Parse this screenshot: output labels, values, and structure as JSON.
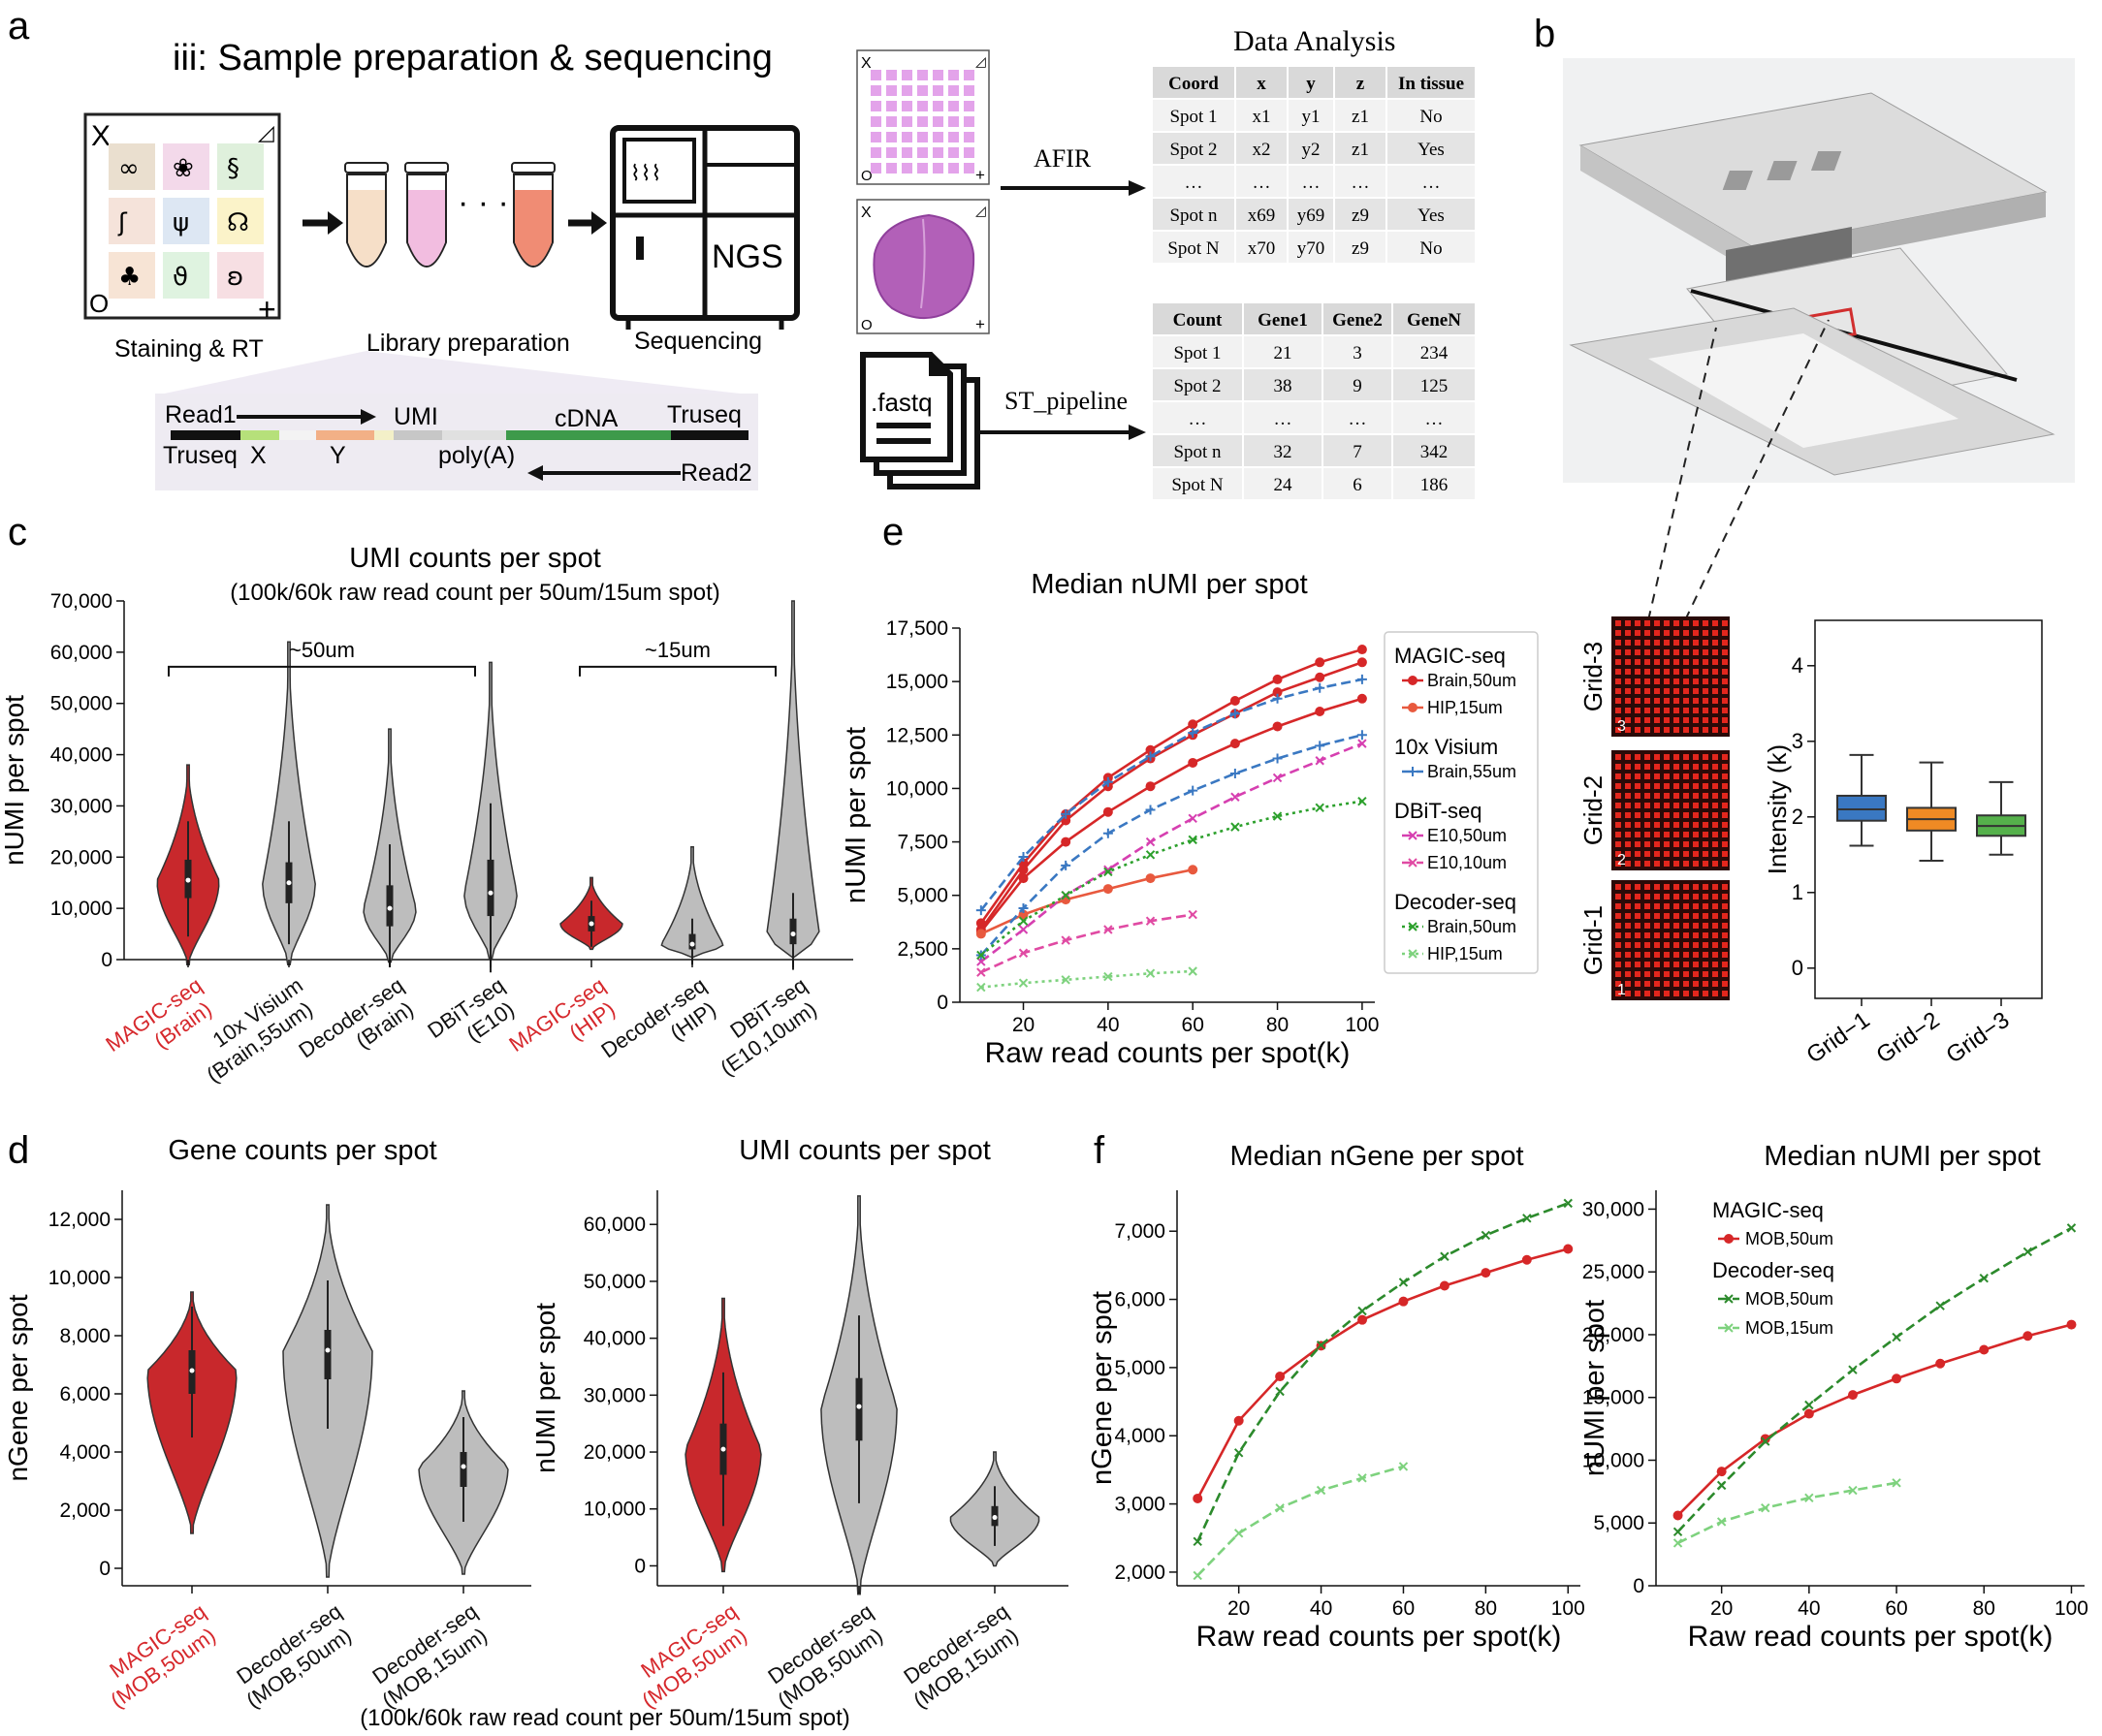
{
  "panels": {
    "a": "a",
    "b": "b",
    "c": "c",
    "d": "d",
    "e": "e",
    "f": "f"
  },
  "a": {
    "title": "iii: Sample preparation & sequencing",
    "staining_label": "Staining & RT",
    "library_label": "Library preparation",
    "sequencing_label": "Sequencing",
    "ngs": "NGS",
    "dots": "· · ·",
    "slide_marks": [
      "X",
      "◿",
      "O",
      "+"
    ],
    "construct": {
      "read1": "Read1",
      "umi": "UMI",
      "cdna": "cDNA",
      "truseq_right": "Truseq",
      "truseq_left": "Truseq",
      "x": "X",
      "y": "Y",
      "polya": "poly(A)",
      "read2": "Read2"
    },
    "afir": "AFIR",
    "st_pipeline": "ST_pipeline",
    "fastq": ".fastq",
    "data_analysis": "Data Analysis",
    "coord_table": {
      "headers": [
        "Coord",
        "x",
        "y",
        "z",
        "In tissue"
      ],
      "rows": [
        [
          "Spot 1",
          "x1",
          "y1",
          "z1",
          "No"
        ],
        [
          "Spot 2",
          "x2",
          "y2",
          "z1",
          "Yes"
        ],
        [
          "…",
          "…",
          "…",
          "…",
          "…"
        ],
        [
          "Spot n",
          "x69",
          "y69",
          "z9",
          "Yes"
        ],
        [
          "Spot N",
          "x70",
          "y70",
          "z9",
          "No"
        ]
      ]
    },
    "count_table": {
      "headers": [
        "Count",
        "Gene1",
        "Gene2",
        "GeneN"
      ],
      "rows": [
        [
          "Spot 1",
          "21",
          "3",
          "234"
        ],
        [
          "Spot 2",
          "38",
          "9",
          "125"
        ],
        [
          "…",
          "…",
          "…",
          "…"
        ],
        [
          "Spot n",
          "32",
          "7",
          "342"
        ],
        [
          "Spot  N",
          "24",
          "6",
          "186"
        ]
      ]
    }
  },
  "b": {
    "grid_labels": [
      "Grid-3",
      "Grid-2",
      "Grid-1"
    ],
    "grid_numbers": [
      "3",
      "2",
      "1"
    ]
  },
  "chart_data": [
    {
      "id": "c",
      "type": "violin",
      "title": "UMI counts per spot",
      "subtitle": "(100k/60k raw read count per 50um/15um spot)",
      "ylabel": "nUMI per spot",
      "ylim": [
        0,
        70000
      ],
      "yticks": [
        "0",
        "10,000",
        "20,000",
        "30,000",
        "40,000",
        "50,000",
        "60,000",
        "70,000"
      ],
      "brackets": [
        "~50um",
        "~15um"
      ],
      "groups": [
        {
          "label": "MAGIC-seq\n(Brain)",
          "color": "#c8282c",
          "min": -1000,
          "max": 38000,
          "median": 15500,
          "q1": 12000,
          "q3": 19500,
          "hl": "red"
        },
        {
          "label": "10x Visium\n(Brain,55um)",
          "color": "#bdbdbd",
          "min": -1000,
          "max": 62000,
          "median": 15000,
          "q1": 11000,
          "q3": 19000
        },
        {
          "label": "Decoder-seq\n(Brain)",
          "color": "#bdbdbd",
          "min": -500,
          "max": 45000,
          "median": 10000,
          "q1": 6500,
          "q3": 14500
        },
        {
          "label": "DBiT-seq\n(E10)",
          "color": "#bdbdbd",
          "min": 0,
          "max": 58000,
          "median": 13000,
          "q1": 8500,
          "q3": 19500
        },
        {
          "label": "MAGIC-seq\n(HIP)",
          "color": "#c8282c",
          "min": 2000,
          "max": 16000,
          "median": 7000,
          "q1": 5500,
          "q3": 8500,
          "hl": "red"
        },
        {
          "label": "Decoder-seq\n(HIP)",
          "color": "#bdbdbd",
          "min": 500,
          "max": 22000,
          "median": 3000,
          "q1": 2000,
          "q3": 5000
        },
        {
          "label": "DBiT-seq\n(E10,10um)",
          "color": "#bdbdbd",
          "min": 500,
          "max": 70000,
          "median": 5000,
          "q1": 3000,
          "q3": 8000
        }
      ]
    },
    {
      "id": "e",
      "type": "line",
      "title": "Median nUMI per spot",
      "xlabel": "Raw read counts per spot(k)",
      "ylabel": "nUMI per spot",
      "xlim": [
        5,
        103
      ],
      "ylim": [
        0,
        17500
      ],
      "xticks": [
        "20",
        "40",
        "60",
        "80",
        "100"
      ],
      "yticks": [
        "0",
        "2,500",
        "5,000",
        "7,500",
        "10,000",
        "12,500",
        "15,000",
        "17,500"
      ],
      "legend_groups": [
        "MAGIC-seq",
        "10x Visium",
        "DBiT-seq",
        "Decoder-seq"
      ],
      "series": [
        {
          "name": "Brain,50um",
          "group": 0,
          "color": "#d62728",
          "style": "solid",
          "marker": "o",
          "x": [
            10,
            20,
            30,
            40,
            50,
            60,
            70,
            80,
            90,
            100
          ],
          "y": [
            3700,
            6500,
            8800,
            10500,
            11800,
            13000,
            14100,
            15100,
            15900,
            16500
          ]
        },
        {
          "name": "",
          "group": 0,
          "color": "#d62728",
          "style": "solid",
          "marker": "o",
          "x": [
            10,
            20,
            30,
            40,
            50,
            60,
            70,
            80,
            90,
            100
          ],
          "y": [
            3400,
            6200,
            8500,
            10100,
            11400,
            12500,
            13500,
            14500,
            15200,
            15900
          ]
        },
        {
          "name": "",
          "group": 0,
          "color": "#d62728",
          "style": "solid",
          "marker": "o",
          "x": [
            10,
            20,
            30,
            40,
            50,
            60,
            70,
            80,
            90,
            100
          ],
          "y": [
            3300,
            5800,
            7500,
            8900,
            10100,
            11200,
            12100,
            12900,
            13600,
            14200
          ]
        },
        {
          "name": "HIP,15um",
          "group": 0,
          "color": "#e8593e",
          "style": "solid",
          "marker": "o",
          "x": [
            10,
            20,
            30,
            40,
            50,
            60
          ],
          "y": [
            3200,
            4100,
            4800,
            5300,
            5800,
            6200
          ]
        },
        {
          "name": "Brain,55um",
          "group": 1,
          "color": "#3a78c2",
          "style": "dashed",
          "marker": "+",
          "x": [
            10,
            20,
            30,
            40,
            50,
            60,
            70,
            80,
            90,
            100
          ],
          "y": [
            4300,
            6800,
            8800,
            10300,
            11500,
            12600,
            13500,
            14200,
            14700,
            15100
          ]
        },
        {
          "name": "",
          "group": 1,
          "color": "#3a78c2",
          "style": "dashed",
          "marker": "+",
          "x": [
            10,
            20,
            30,
            40,
            50,
            60,
            70,
            80,
            90,
            100
          ],
          "y": [
            2200,
            4400,
            6400,
            7900,
            9000,
            9900,
            10700,
            11400,
            12000,
            12500
          ]
        },
        {
          "name": "E10,50um",
          "group": 2,
          "color": "#d63fb0",
          "style": "dashed",
          "marker": "x",
          "x": [
            10,
            20,
            30,
            40,
            50,
            60,
            70,
            80,
            90,
            100
          ],
          "y": [
            1900,
            3400,
            5000,
            6200,
            7500,
            8600,
            9600,
            10500,
            11300,
            12100
          ]
        },
        {
          "name": "E10,10um",
          "group": 2,
          "color": "#e04aa3",
          "style": "dashed",
          "marker": "x",
          "x": [
            10,
            20,
            30,
            40,
            50,
            60
          ],
          "y": [
            1400,
            2300,
            2900,
            3400,
            3800,
            4100
          ]
        },
        {
          "name": "Brain,50um",
          "group": 3,
          "color": "#2ca02c",
          "style": "dotted",
          "marker": "x",
          "x": [
            10,
            20,
            30,
            40,
            50,
            60,
            70,
            80,
            90,
            100
          ],
          "y": [
            2200,
            3800,
            5000,
            6100,
            6900,
            7600,
            8200,
            8700,
            9100,
            9400
          ]
        },
        {
          "name": "HIP,15um",
          "group": 3,
          "color": "#7ed27e",
          "style": "dotted",
          "marker": "x",
          "x": [
            10,
            20,
            30,
            40,
            50,
            60
          ],
          "y": [
            700,
            900,
            1050,
            1200,
            1350,
            1450
          ]
        }
      ]
    },
    {
      "id": "b-box",
      "type": "box",
      "ylabel": "Intensity (k)",
      "ylim": [
        -0.4,
        4.6
      ],
      "yticks": [
        "0",
        "1",
        "2",
        "3",
        "4"
      ],
      "categories": [
        "Grid−1",
        "Grid−2",
        "Grid−3"
      ],
      "boxes": [
        {
          "color": "#3a78c2",
          "min": 1.62,
          "q1": 1.95,
          "median": 2.1,
          "q3": 2.28,
          "max": 2.82
        },
        {
          "color": "#ef8a24",
          "min": 1.42,
          "q1": 1.82,
          "median": 1.97,
          "q3": 2.12,
          "max": 2.72
        },
        {
          "color": "#55b14b",
          "min": 1.5,
          "q1": 1.75,
          "median": 1.88,
          "q3": 2.02,
          "max": 2.46
        }
      ]
    },
    {
      "id": "d1",
      "type": "violin",
      "title": "Gene counts per spot",
      "ylabel": "nGene per spot",
      "ylim": [
        -600,
        13000
      ],
      "yticks": [
        "0",
        "2,000",
        "4,000",
        "6,000",
        "8,000",
        "10,000",
        "12,000"
      ],
      "groups": [
        {
          "label": "MAGIC-seq\n(MOB,50um)",
          "color": "#c8282c",
          "min": 1200,
          "max": 9500,
          "median": 6800,
          "q1": 6000,
          "q3": 7500,
          "hl": "red"
        },
        {
          "label": "Decoder-seq\n(MOB,50um)",
          "color": "#bdbdbd",
          "min": -300,
          "max": 12500,
          "median": 7500,
          "q1": 6500,
          "q3": 8200
        },
        {
          "label": "Decoder-seq\n(MOB,15um)",
          "color": "#bdbdbd",
          "min": -200,
          "max": 6100,
          "median": 3500,
          "q1": 2800,
          "q3": 4000
        }
      ]
    },
    {
      "id": "d2",
      "type": "violin",
      "title": "UMI counts per spot",
      "ylabel": "nUMI per spot",
      "ylim": [
        -3500,
        66000
      ],
      "yticks": [
        "0",
        "10,000",
        "20,000",
        "30,000",
        "40,000",
        "50,000",
        "60,000"
      ],
      "caption": "(100k/60k raw read count per 50um/15um spot)",
      "groups": [
        {
          "label": "MAGIC-seq\n(MOB,50um)",
          "color": "#c8282c",
          "min": -1000,
          "max": 47000,
          "median": 20500,
          "q1": 16000,
          "q3": 25000,
          "hl": "red"
        },
        {
          "label": "Decoder-seq\n(MOB,50um)",
          "color": "#bdbdbd",
          "min": -5000,
          "max": 65000,
          "median": 28000,
          "q1": 22000,
          "q3": 33000
        },
        {
          "label": "Decoder-seq\n(MOB,15um)",
          "color": "#bdbdbd",
          "min": 0,
          "max": 20000,
          "median": 8500,
          "q1": 7000,
          "q3": 10500
        }
      ]
    },
    {
      "id": "f1",
      "type": "line",
      "title": "Median nGene per spot",
      "xlabel": "Raw read counts per spot(k)",
      "ylabel": "nGene per spot",
      "xlim": [
        5,
        103
      ],
      "ylim": [
        1800,
        7600
      ],
      "xticks": [
        "20",
        "40",
        "60",
        "80",
        "100"
      ],
      "yticks": [
        "2,000",
        "3,000",
        "4,000",
        "5,000",
        "6,000",
        "7,000"
      ],
      "series": [
        {
          "name": "MOB,50um",
          "color": "#d62728",
          "style": "solid",
          "marker": "o",
          "x": [
            10,
            20,
            30,
            40,
            50,
            60,
            70,
            80,
            90,
            100
          ],
          "y": [
            3080,
            4220,
            4870,
            5320,
            5700,
            5970,
            6200,
            6390,
            6580,
            6740
          ]
        },
        {
          "name": "MOB,50um",
          "color": "#2c8a2c",
          "style": "dashed",
          "marker": "x",
          "x": [
            10,
            20,
            30,
            40,
            50,
            60,
            70,
            80,
            90,
            100
          ],
          "y": [
            2450,
            3750,
            4650,
            5330,
            5830,
            6250,
            6630,
            6940,
            7190,
            7410
          ]
        },
        {
          "name": "MOB,15um",
          "color": "#7ed27e",
          "style": "dashed",
          "marker": "x",
          "x": [
            10,
            20,
            30,
            40,
            50,
            60
          ],
          "y": [
            1950,
            2570,
            2940,
            3200,
            3380,
            3550
          ]
        }
      ]
    },
    {
      "id": "f2",
      "type": "line",
      "title": "Median nUMI per spot",
      "xlabel": "Raw read counts per spot(k)",
      "ylabel": "nUMI per spot",
      "xlim": [
        5,
        103
      ],
      "ylim": [
        0,
        31500
      ],
      "xticks": [
        "20",
        "40",
        "60",
        "80",
        "100"
      ],
      "yticks": [
        "0",
        "5,000",
        "10,000",
        "15,000",
        "20,000",
        "25,000",
        "30,000"
      ],
      "legend_groups": [
        "MAGIC-seq",
        "Decoder-seq"
      ],
      "series": [
        {
          "name": "MOB,50um",
          "group": 0,
          "color": "#d62728",
          "style": "solid",
          "marker": "o",
          "x": [
            10,
            20,
            30,
            40,
            50,
            60,
            70,
            80,
            90,
            100
          ],
          "y": [
            5600,
            9100,
            11700,
            13700,
            15200,
            16500,
            17700,
            18800,
            19900,
            20800
          ]
        },
        {
          "name": "MOB,50um",
          "group": 1,
          "color": "#2c8a2c",
          "style": "dashed",
          "marker": "x",
          "x": [
            10,
            20,
            30,
            40,
            50,
            60,
            70,
            80,
            90,
            100
          ],
          "y": [
            4300,
            8000,
            11500,
            14400,
            17200,
            19800,
            22300,
            24500,
            26600,
            28500
          ]
        },
        {
          "name": "MOB,15um",
          "group": 1,
          "color": "#7ed27e",
          "style": "dashed",
          "marker": "x",
          "x": [
            10,
            20,
            30,
            40,
            50,
            60
          ],
          "y": [
            3400,
            5100,
            6200,
            7000,
            7600,
            8200
          ]
        }
      ]
    }
  ]
}
